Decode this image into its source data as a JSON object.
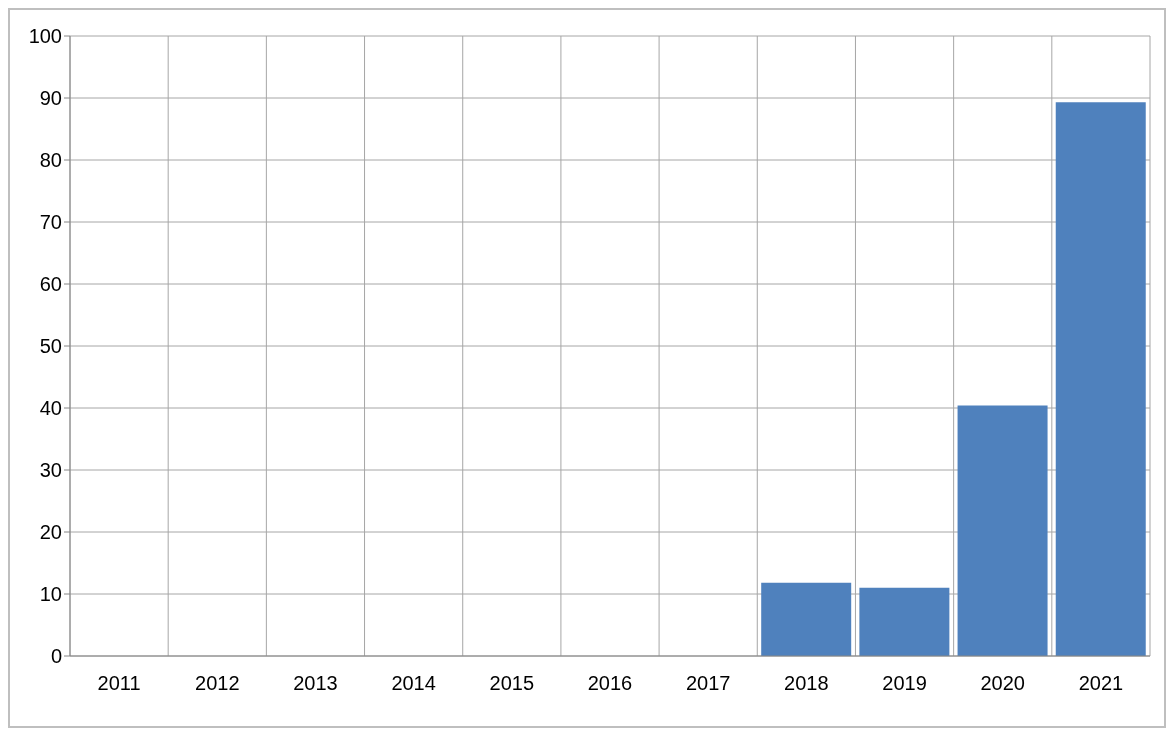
{
  "chart_data": {
    "type": "bar",
    "categories": [
      "2011",
      "2012",
      "2013",
      "2014",
      "2015",
      "2016",
      "2017",
      "2018",
      "2019",
      "2020",
      "2021"
    ],
    "values": [
      null,
      null,
      null,
      null,
      null,
      null,
      null,
      11.8,
      11.0,
      40.4,
      89.3
    ],
    "color": "#4f81bd",
    "ylim": [
      0,
      100
    ],
    "yticks": [
      0,
      10,
      20,
      30,
      40,
      50,
      60,
      70,
      80,
      90,
      100
    ],
    "grid": true
  }
}
